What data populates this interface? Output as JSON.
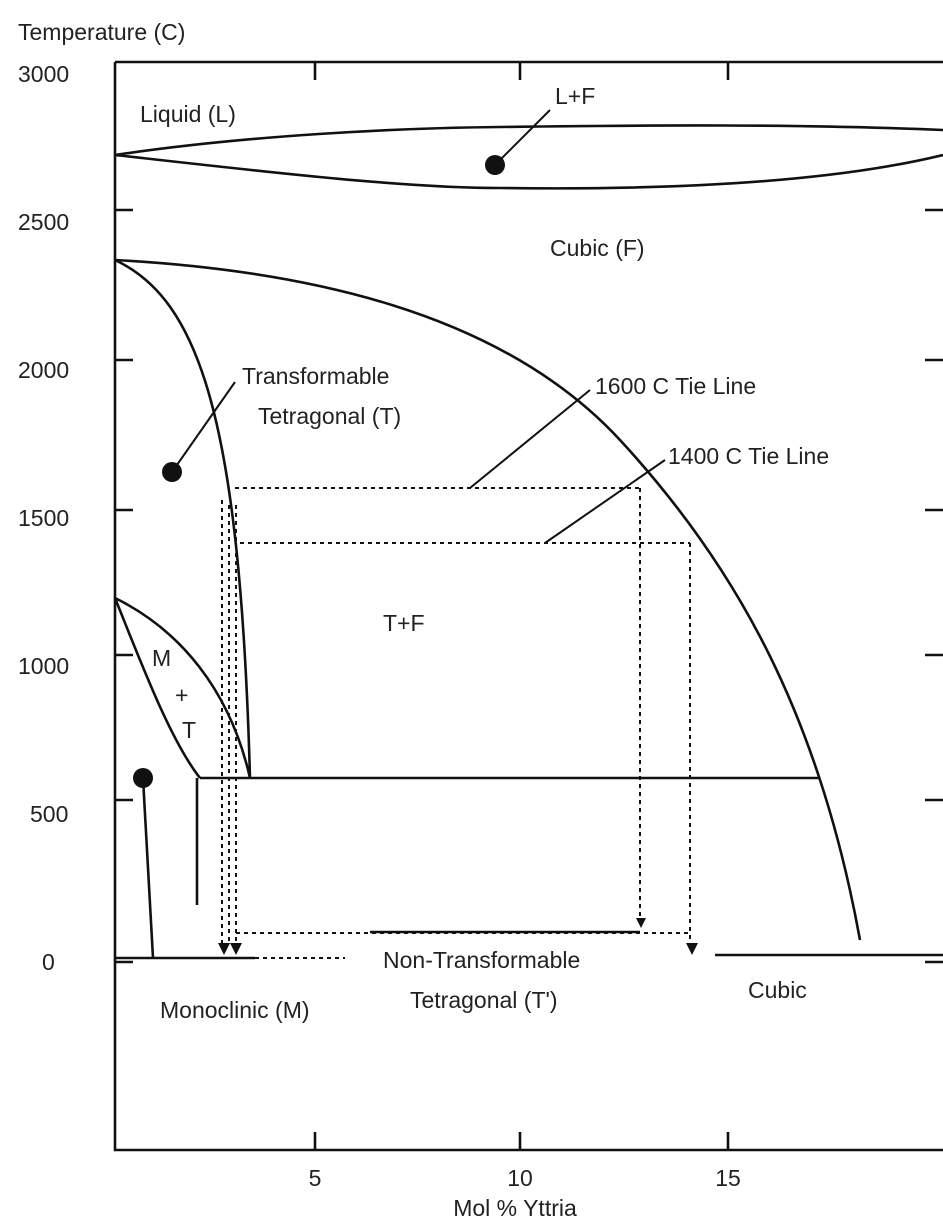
{
  "y_axis": {
    "label": "Temperature (C)",
    "ticks": [
      "3000",
      "2500",
      "2000",
      "1500",
      "1000",
      "500",
      "0"
    ]
  },
  "x_axis": {
    "label": "Mol % Yttria",
    "ticks": [
      "5",
      "10",
      "15"
    ]
  },
  "regions": [
    "Liquid (L)",
    "L+F",
    "Cubic (F)",
    "Transformable",
    "Tetragonal (T)",
    "1600 C Tie Line",
    "1400 C Tie Line",
    "T+F",
    "M",
    "+",
    "T",
    "Non-Transformable",
    "Tetragonal (T')",
    "Monoclinic (M)",
    "Cubic"
  ]
}
